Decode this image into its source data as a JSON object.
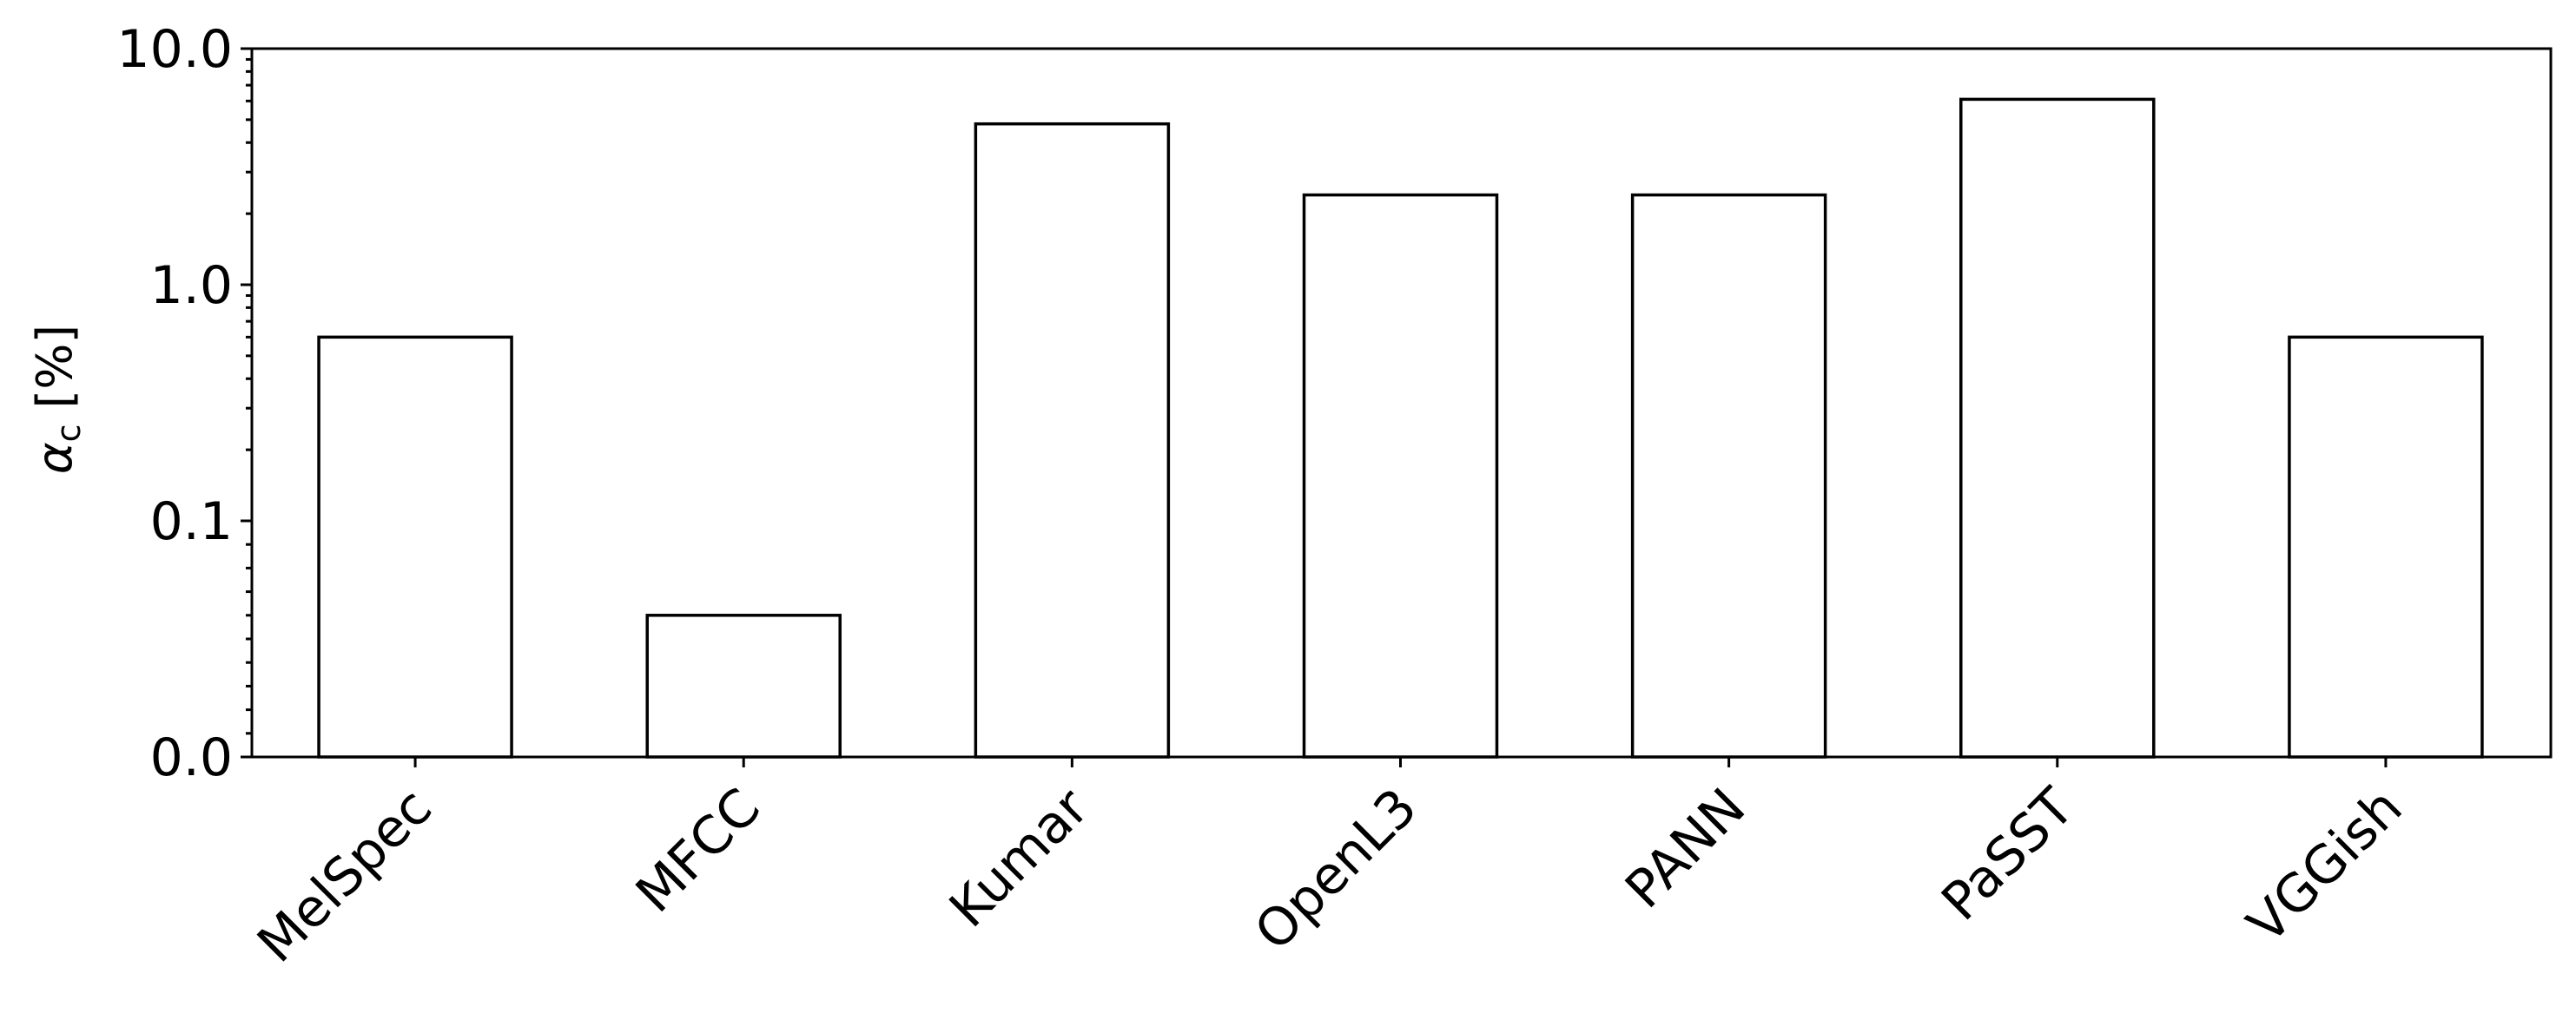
{
  "chart_data": {
    "type": "bar",
    "categories": [
      "MelSpec",
      "MFCC",
      "Kumar",
      "OpenL3",
      "PANN",
      "PaSST",
      "VGGish"
    ],
    "values": [
      0.6,
      0.06,
      4.8,
      2.4,
      2.4,
      6.1,
      0.6
    ],
    "ylabel_symbol": "α",
    "ylabel_subscript": "c",
    "ylabel_unit": "[%]",
    "yticks": [
      "0.0",
      "0.1",
      "1.0",
      "10.0"
    ],
    "yscale": "symlog",
    "ylim": [
      0,
      10
    ],
    "grid": false,
    "colors": {
      "bar_fill": "#ffffff",
      "bar_edge": "#000000"
    }
  }
}
